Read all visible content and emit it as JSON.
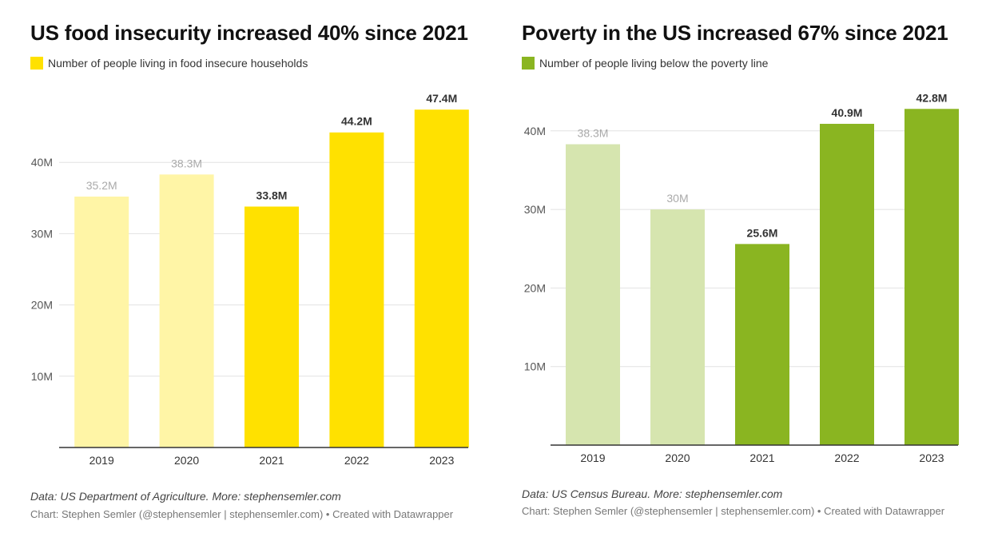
{
  "chart_data": [
    {
      "type": "bar",
      "title": "US food insecurity increased 40% since 2021",
      "legend": {
        "label": "Number of people living in food insecure households",
        "color": "#ffe100"
      },
      "categories": [
        "2019",
        "2020",
        "2021",
        "2022",
        "2023"
      ],
      "values": [
        35.2,
        38.3,
        33.8,
        44.2,
        47.4
      ],
      "value_labels": [
        "35.2M",
        "38.3M",
        "33.8M",
        "44.2M",
        "47.4M"
      ],
      "highlight": [
        false,
        false,
        true,
        true,
        true
      ],
      "colors": {
        "highlight": "#ffe100",
        "muted": "#fff5a6",
        "label_highlight": "#333333",
        "label_muted": "#aaaaaa"
      },
      "yticks": [
        {
          "value": 10,
          "label": "10M"
        },
        {
          "value": 20,
          "label": "20M"
        },
        {
          "value": 30,
          "label": "30M"
        },
        {
          "value": 40,
          "label": "40M"
        }
      ],
      "ylim": [
        0,
        50
      ],
      "grid": true,
      "source": "Data: US Department of Agriculture. More: stephensemler.com",
      "byline": "Chart: Stephen Semler (@stephensemler | stephensemler.com) • Created with Datawrapper"
    },
    {
      "type": "bar",
      "title": "Poverty in the US increased 67% since 2021",
      "legend": {
        "label": "Number of people living below the poverty line",
        "color": "#8ab521"
      },
      "categories": [
        "2019",
        "2020",
        "2021",
        "2022",
        "2023"
      ],
      "values": [
        38.3,
        30,
        25.6,
        40.9,
        42.8
      ],
      "value_labels": [
        "38.3M",
        "30M",
        "25.6M",
        "40.9M",
        "42.8M"
      ],
      "highlight": [
        false,
        false,
        true,
        true,
        true
      ],
      "colors": {
        "highlight": "#8ab521",
        "muted": "#d6e5af",
        "label_highlight": "#333333",
        "label_muted": "#aaaaaa"
      },
      "yticks": [
        {
          "value": 10,
          "label": "10M"
        },
        {
          "value": 20,
          "label": "20M"
        },
        {
          "value": 30,
          "label": "30M"
        },
        {
          "value": 40,
          "label": "40M"
        }
      ],
      "ylim": [
        0,
        45
      ],
      "grid": true,
      "source": "Data: US Census Bureau. More: stephensemler.com",
      "byline": "Chart: Stephen Semler (@stephensemler | stephensemler.com) • Created with Datawrapper"
    }
  ]
}
